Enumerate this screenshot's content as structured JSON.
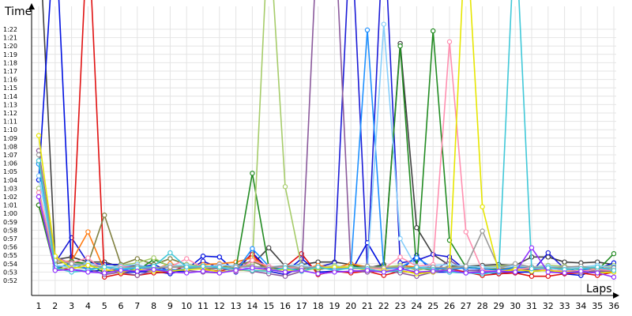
{
  "chart_data": {
    "type": "line",
    "title": "",
    "xlabel": "Laps",
    "ylabel": "Time",
    "x": [
      1,
      2,
      3,
      4,
      5,
      6,
      7,
      8,
      9,
      10,
      11,
      12,
      13,
      14,
      15,
      16,
      17,
      18,
      19,
      20,
      21,
      22,
      23,
      24,
      25,
      26,
      27,
      28,
      29,
      30,
      31,
      32,
      33,
      34,
      35,
      36
    ],
    "x_ticks": [
      "1",
      "2",
      "3",
      "4",
      "5",
      "6",
      "7",
      "8",
      "9",
      "10",
      "11",
      "12",
      "13",
      "14",
      "15",
      "16",
      "17",
      "18",
      "19",
      "20",
      "21",
      "22",
      "23",
      "24",
      "25",
      "26",
      "27",
      "28",
      "29",
      "30",
      "31",
      "32",
      "33",
      "34",
      "35",
      "36"
    ],
    "y_ticks": [
      "0:52",
      "0:53",
      "0:54",
      "0:55",
      "0:56",
      "0:57",
      "0:58",
      "0:59",
      "1:00",
      "1:01",
      "1:02",
      "1:03",
      "1:04",
      "1:05",
      "1:06",
      "1:07",
      "1:08",
      "1:09",
      "1:10",
      "1:11",
      "1:12",
      "1:13",
      "1:14",
      "1:15",
      "1:16",
      "1:17",
      "1:18",
      "1:19",
      "1:20",
      "1:21",
      "1:22"
    ],
    "ylim_seconds": [
      51,
      83
    ],
    "grid": true,
    "legend": "none",
    "series": [
      {
        "color": "#404040",
        "values": [
          95,
          54.5,
          54.8,
          54.2,
          54.2,
          53.6,
          53.8,
          53.4,
          53.6,
          53.6,
          53.4,
          53.4,
          53.6,
          53.9,
          55.9,
          53.7,
          53.9,
          54.2,
          54.2,
          53.9,
          53.5,
          53.9,
          80.3,
          58.3,
          55.1,
          53.8,
          53.7,
          53.8,
          53.9,
          53.8,
          54.8,
          54.8,
          54.2,
          54.1,
          54.2,
          53.9
        ]
      },
      {
        "color": "#1a1ad6",
        "values": [
          61,
          54.1,
          57.1,
          54.1,
          53.9,
          53.9,
          53.5,
          53.9,
          53.1,
          53.1,
          54.3,
          53.5,
          53.1,
          54.5,
          53.1,
          52.7,
          53.6,
          53.6,
          54.1,
          95,
          53.2,
          95,
          54.1,
          54.4,
          55.1,
          54.8,
          53.2,
          53.2,
          53.0,
          53.0,
          53.0,
          55.3,
          53.4,
          53.0,
          52.9,
          53.3
        ]
      },
      {
        "color": "#0010e0",
        "values": [
          64,
          95,
          53.3,
          53.1,
          53.2,
          53.0,
          53.0,
          53.1,
          52.8,
          53.3,
          54.9,
          54.8,
          53.0,
          55.3,
          53.3,
          53.0,
          54.6,
          53.0,
          53.1,
          53.0,
          56.5,
          53.2,
          53.1,
          55.0,
          53.0,
          53.0,
          52.9,
          53.0,
          52.8,
          52.9,
          53.1,
          53.2,
          52.8,
          52.6,
          53.4,
          54.1
        ]
      },
      {
        "color": "#e01010",
        "values": [
          61,
          53.7,
          53.2,
          95,
          52.4,
          52.8,
          52.6,
          52.9,
          53.0,
          53.8,
          53.3,
          53.1,
          53.6,
          55.1,
          53.1,
          53.6,
          55.2,
          52.7,
          53.1,
          52.9,
          53.1,
          52.6,
          53.1,
          52.9,
          53.0,
          53.4,
          53.0,
          52.6,
          52.8,
          52.9,
          52.5,
          52.5,
          52.8,
          52.9,
          52.6,
          53.0
        ]
      },
      {
        "color": "#ff7a10",
        "values": [
          61,
          54.3,
          54.3,
          57.8,
          53.2,
          53.2,
          53.5,
          53.3,
          54.0,
          53.5,
          53.9,
          54.0,
          54.2,
          54.7,
          53.5,
          53.6,
          53.3,
          53.8,
          53.5,
          54.0,
          53.6,
          53.4,
          53.8,
          53.6,
          53.3,
          53.5,
          53.6,
          53.3,
          53.4,
          53.5,
          53.6,
          53.4,
          53.6,
          53.5,
          53.4,
          53.6
        ]
      },
      {
        "color": "#808040",
        "values": [
          66,
          54.0,
          54.3,
          54.0,
          59.8,
          53.9,
          54.6,
          53.9,
          54.6,
          53.9,
          53.7,
          53.6,
          53.8,
          54.3,
          53.4,
          53.6,
          53.5,
          53.3,
          53.6,
          53.6,
          53.7,
          53.4,
          53.6,
          53.5,
          53.2,
          53.7,
          53.5,
          53.4,
          53.3,
          53.6,
          53.5,
          53.5,
          53.4,
          53.3,
          53.2,
          53.3
        ]
      },
      {
        "color": "#228b22",
        "values": [
          61,
          53.3,
          54.2,
          54.0,
          52.9,
          53.5,
          53.2,
          54.5,
          53.7,
          53.6,
          53.5,
          53.6,
          53.4,
          64.8,
          53.6,
          53.4,
          53.4,
          53.6,
          53.4,
          53.7,
          53.5,
          53.7,
          80.0,
          53.2,
          81.8,
          56.8,
          53.6,
          53.4,
          53.3,
          53.3,
          53.4,
          53.5,
          53.4,
          52.9,
          53.2,
          55.2
        ]
      },
      {
        "color": "#a6cc6a",
        "values": [
          63,
          53.3,
          53.6,
          53.4,
          53.5,
          53.8,
          54.1,
          54.7,
          53.6,
          53.9,
          53.7,
          53.5,
          53.6,
          53.9,
          95,
          63.2,
          53.6,
          53.5,
          53.8,
          53.4,
          53.5,
          53.6,
          53.8,
          53.2,
          53.6,
          53.4,
          53.7,
          53.6,
          53.7,
          53.9,
          53.6,
          53.8,
          53.7,
          53.5,
          53.6,
          53.8
        ]
      },
      {
        "color": "#8b5a9c",
        "values": [
          67.5,
          54.8,
          54.0,
          53.4,
          52.7,
          53.0,
          52.6,
          53.2,
          53.3,
          53.2,
          53.0,
          52.9,
          53.3,
          53.1,
          52.8,
          52.5,
          53.1,
          95,
          95,
          53.2,
          53.0,
          53.2,
          52.9,
          52.5,
          53.0,
          54.4,
          53.2,
          53.1,
          53.0,
          53.2,
          53.3,
          53.3,
          53.0,
          52.9,
          53.1,
          53.1
        ]
      },
      {
        "color": "#1e90ff",
        "values": [
          65.9,
          53.5,
          54.0,
          53.3,
          53.6,
          53.2,
          53.5,
          53.4,
          53.2,
          53.4,
          53.5,
          53.5,
          53.1,
          55.8,
          53.7,
          53.4,
          53.5,
          53.5,
          53.4,
          53.6,
          81.9,
          53.4,
          53.5,
          54.7,
          53.5,
          53.3,
          53.5,
          53.4,
          53.2,
          53.6,
          53.4,
          53.5,
          53.3,
          53.4,
          53.2,
          53.6
        ]
      },
      {
        "color": "#87cefa",
        "values": [
          64.5,
          53.8,
          53.6,
          54.1,
          53.6,
          53.7,
          53.9,
          53.4,
          53.8,
          53.8,
          53.5,
          53.9,
          53.7,
          53.4,
          53.6,
          53.8,
          53.8,
          53.5,
          53.7,
          53.6,
          53.4,
          82.6,
          57.0,
          53.5,
          53.8,
          53.9,
          53.7,
          53.6,
          53.5,
          53.8,
          53.6,
          53.7,
          53.5,
          53.6,
          53.8,
          53.5
        ]
      },
      {
        "color": "#ff8fb0",
        "values": [
          62.5,
          54.6,
          54.1,
          54.7,
          53.1,
          53.6,
          53.6,
          53.5,
          53.6,
          54.6,
          53.5,
          53.7,
          53.1,
          54.4,
          53.7,
          53.5,
          53.5,
          53.6,
          53.6,
          53.4,
          53.4,
          53.4,
          54.8,
          53.7,
          53.9,
          80.5,
          57.8,
          53.2,
          53.1,
          53.3,
          53.5,
          53.2,
          53.2,
          53.1,
          53.3,
          53.2
        ]
      },
      {
        "color": "#999999",
        "values": [
          67,
          54.4,
          54.0,
          53.8,
          53.6,
          53.4,
          53.7,
          53.5,
          53.6,
          53.6,
          53.5,
          53.4,
          53.6,
          53.7,
          53.5,
          53.8,
          53.5,
          53.6,
          53.5,
          53.4,
          53.7,
          53.5,
          53.6,
          53.4,
          53.6,
          53.5,
          53.7,
          57.9,
          53.5,
          54.0,
          53.6,
          53.5,
          53.6,
          53.7,
          53.4,
          53.5
        ]
      },
      {
        "color": "#e6e600",
        "values": [
          69.3,
          54.9,
          53.4,
          53.8,
          53.3,
          53.0,
          53.3,
          53.1,
          53.1,
          53.3,
          53.4,
          53.0,
          53.2,
          53.2,
          53.2,
          53.3,
          53.1,
          53.5,
          53.6,
          53.6,
          53.2,
          53.2,
          53.2,
          52.8,
          53.0,
          53.3,
          95,
          60.8,
          53.0,
          53.3,
          53.1,
          53.2,
          53.0,
          53.1,
          52.9,
          53.0
        ]
      },
      {
        "color": "#40c8d8",
        "values": [
          66.3,
          53.5,
          53.0,
          53.2,
          53.6,
          53.4,
          53.5,
          53.7,
          55.3,
          53.6,
          53.7,
          53.6,
          53.3,
          53.2,
          53.1,
          53.5,
          53.1,
          53.6,
          53.2,
          53.5,
          53.4,
          53.0,
          53.2,
          53.6,
          53.3,
          53.0,
          52.9,
          52.8,
          53.0,
          95,
          53.4,
          53.5,
          53.3,
          53.4,
          53.6,
          53.2
        ]
      },
      {
        "color": "#9030ff",
        "values": [
          62,
          53.2,
          53.3,
          53.0,
          52.9,
          53.2,
          53.1,
          53.3,
          53.0,
          52.9,
          53.1,
          52.9,
          53.2,
          53.5,
          53.3,
          53.0,
          53.2,
          52.8,
          53.0,
          53.1,
          53.2,
          53.0,
          53.4,
          53.0,
          53.1,
          53.2,
          52.9,
          53.0,
          53.1,
          53.0,
          55.9,
          53.0,
          52.9,
          53.1,
          52.9,
          52.4
        ]
      }
    ]
  }
}
